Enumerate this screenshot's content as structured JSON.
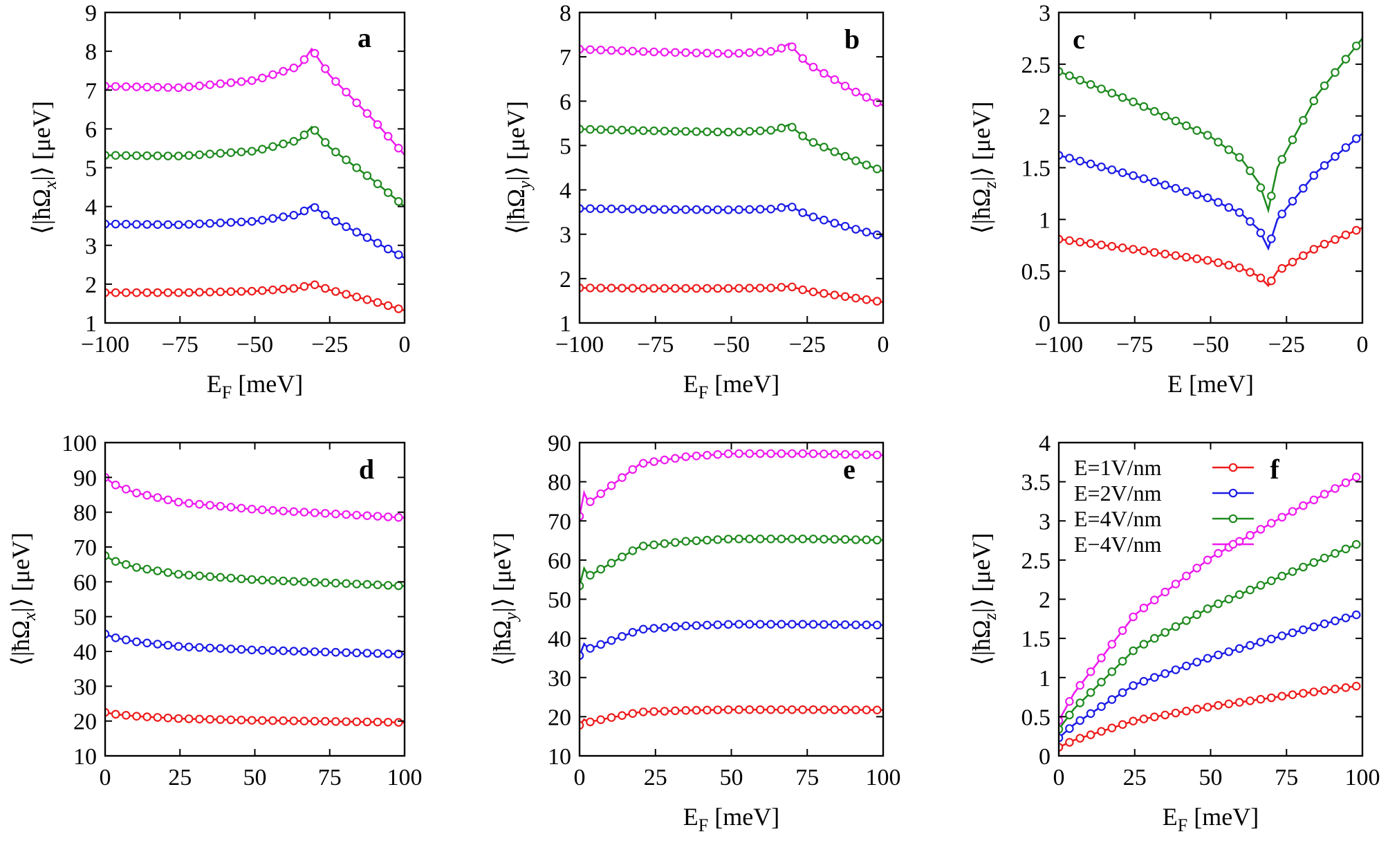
{
  "colors": {
    "red": "#ee1c1c",
    "blue": "#1c1ce6",
    "green": "#1f8a1f",
    "magenta": "#ee1cee"
  },
  "legend_labels": [
    "E=1V/nm",
    "E=2V/nm",
    "E=4V/nm",
    "E−4V/nm"
  ],
  "chart_data": [
    {
      "type": "line",
      "panel": "a",
      "ylabel": "⟨|ħΩx|⟩ [μeV]",
      "xlabel": "EF [meV]",
      "xlim": [
        -100,
        0
      ],
      "ylim": [
        1,
        9
      ],
      "xticks": [
        -100,
        -75,
        -50,
        -25,
        0
      ],
      "xtick_labels": [
        "−100",
        "−75",
        "−50",
        "−25",
        "0"
      ],
      "yticks": [
        1,
        2,
        3,
        4,
        5,
        6,
        7,
        8,
        9
      ],
      "ytick_labels": [
        "1",
        "2",
        "3",
        "4",
        "5",
        "6",
        "7",
        "8",
        "9"
      ],
      "series": [
        {
          "name": "E=1V/nm",
          "color": "red",
          "points": [
            [
              -100,
              1.78
            ],
            [
              -75,
              1.78
            ],
            [
              -50,
              1.82
            ],
            [
              -35,
              1.9
            ],
            [
              -31,
              2.01
            ],
            [
              -25,
              1.85
            ],
            [
              -10,
              1.55
            ],
            [
              0,
              1.32
            ]
          ]
        },
        {
          "name": "E=2V/nm",
          "color": "blue",
          "points": [
            [
              -100,
              3.55
            ],
            [
              -75,
              3.53
            ],
            [
              -50,
              3.62
            ],
            [
              -35,
              3.8
            ],
            [
              -31,
              4.03
            ],
            [
              -25,
              3.7
            ],
            [
              -10,
              3.1
            ],
            [
              0,
              2.67
            ]
          ]
        },
        {
          "name": "E=4V/nm",
          "color": "green",
          "points": [
            [
              -100,
              5.32
            ],
            [
              -75,
              5.3
            ],
            [
              -50,
              5.43
            ],
            [
              -35,
              5.72
            ],
            [
              -31,
              6.05
            ],
            [
              -25,
              5.52
            ],
            [
              -10,
              4.65
            ],
            [
              0,
              4.0
            ]
          ]
        },
        {
          "name": "E−4V/nm",
          "color": "magenta",
          "points": [
            [
              -100,
              7.1
            ],
            [
              -75,
              7.06
            ],
            [
              -50,
              7.25
            ],
            [
              -35,
              7.62
            ],
            [
              -31,
              8.06
            ],
            [
              -25,
              7.38
            ],
            [
              -10,
              6.2
            ],
            [
              0,
              5.33
            ]
          ]
        }
      ]
    },
    {
      "type": "line",
      "panel": "b",
      "ylabel": "⟨|ħΩy|⟩ [μeV]",
      "xlabel": "EF [meV]",
      "xlim": [
        -100,
        0
      ],
      "ylim": [
        1,
        8
      ],
      "xticks": [
        -100,
        -75,
        -50,
        -25,
        0
      ],
      "xtick_labels": [
        "−100",
        "−75",
        "−50",
        "−25",
        "0"
      ],
      "yticks": [
        1,
        2,
        3,
        4,
        5,
        6,
        7,
        8
      ],
      "ytick_labels": [
        "1",
        "2",
        "3",
        "4",
        "5",
        "6",
        "7",
        "8"
      ],
      "series": [
        {
          "name": "E=1V/nm",
          "color": "red",
          "points": [
            [
              -100,
              1.79
            ],
            [
              -75,
              1.78
            ],
            [
              -50,
              1.78
            ],
            [
              -35,
              1.79
            ],
            [
              -31,
              1.83
            ],
            [
              -25,
              1.72
            ],
            [
              -10,
              1.57
            ],
            [
              0,
              1.47
            ]
          ]
        },
        {
          "name": "E=2V/nm",
          "color": "blue",
          "points": [
            [
              -100,
              3.58
            ],
            [
              -75,
              3.56
            ],
            [
              -50,
              3.55
            ],
            [
              -35,
              3.57
            ],
            [
              -31,
              3.65
            ],
            [
              -25,
              3.43
            ],
            [
              -10,
              3.13
            ],
            [
              0,
              2.95
            ]
          ]
        },
        {
          "name": "E=4V/nm",
          "color": "green",
          "points": [
            [
              -100,
              5.37
            ],
            [
              -75,
              5.33
            ],
            [
              -50,
              5.3
            ],
            [
              -35,
              5.35
            ],
            [
              -31,
              5.47
            ],
            [
              -25,
              5.13
            ],
            [
              -10,
              4.68
            ],
            [
              0,
              4.42
            ]
          ]
        },
        {
          "name": "E−4V/nm",
          "color": "magenta",
          "points": [
            [
              -100,
              7.17
            ],
            [
              -75,
              7.11
            ],
            [
              -50,
              7.07
            ],
            [
              -35,
              7.13
            ],
            [
              -31,
              7.3
            ],
            [
              -25,
              6.85
            ],
            [
              -10,
              6.24
            ],
            [
              0,
              5.9
            ]
          ]
        }
      ]
    },
    {
      "type": "line",
      "panel": "c",
      "ylabel": "⟨|ħΩz|⟩ [μeV]",
      "xlabel": "E   [meV]",
      "xlim": [
        -100,
        0
      ],
      "ylim": [
        0,
        3
      ],
      "xticks": [
        -100,
        -75,
        -50,
        -25,
        0
      ],
      "xtick_labels": [
        "−100",
        "−75",
        "−50",
        "−25",
        "0"
      ],
      "yticks": [
        0,
        0.5,
        1,
        1.5,
        2,
        2.5,
        3
      ],
      "ytick_labels": [
        "0",
        "0.5",
        "1",
        "1.5",
        "2",
        "2.5",
        "3"
      ],
      "series": [
        {
          "name": "E=1V/nm",
          "color": "red",
          "points": [
            [
              -100,
              0.81
            ],
            [
              -75,
              0.71
            ],
            [
              -50,
              0.6
            ],
            [
              -40,
              0.53
            ],
            [
              -34,
              0.45
            ],
            [
              -31,
              0.36
            ],
            [
              -28,
              0.5
            ],
            [
              -15,
              0.73
            ],
            [
              0,
              0.92
            ]
          ]
        },
        {
          "name": "E=2V/nm",
          "color": "blue",
          "points": [
            [
              -100,
              1.62
            ],
            [
              -75,
              1.42
            ],
            [
              -50,
              1.2
            ],
            [
              -40,
              1.06
            ],
            [
              -34,
              0.9
            ],
            [
              -31,
              0.72
            ],
            [
              -28,
              1.0
            ],
            [
              -15,
              1.46
            ],
            [
              0,
              1.83
            ]
          ]
        },
        {
          "name": "E=4V/nm",
          "color": "green",
          "points": [
            [
              -100,
              2.43
            ],
            [
              -75,
              2.13
            ],
            [
              -50,
              1.8
            ],
            [
              -40,
              1.59
            ],
            [
              -34,
              1.35
            ],
            [
              -31,
              1.09
            ],
            [
              -28,
              1.5
            ],
            [
              -15,
              2.2
            ],
            [
              0,
              2.75
            ]
          ]
        }
      ]
    },
    {
      "type": "line",
      "panel": "d",
      "ylabel": "⟨|ħΩx|⟩ [μeV]",
      "xlabel": "",
      "xlim": [
        0,
        100
      ],
      "ylim": [
        10,
        100
      ],
      "xticks": [
        0,
        25,
        50,
        75,
        100
      ],
      "xtick_labels": [
        "0",
        "25",
        "50",
        "75",
        "100"
      ],
      "yticks": [
        10,
        20,
        30,
        40,
        50,
        60,
        70,
        80,
        90,
        100
      ],
      "ytick_labels": [
        "10",
        "20",
        "30",
        "40",
        "50",
        "60",
        "70",
        "80",
        "90",
        "100"
      ],
      "series": [
        {
          "name": "E=1V/nm",
          "color": "red",
          "points": [
            [
              0,
              22.5
            ],
            [
              3,
              22.0
            ],
            [
              10,
              21.4
            ],
            [
              25,
              20.7
            ],
            [
              50,
              20.2
            ],
            [
              75,
              19.9
            ],
            [
              100,
              19.6
            ]
          ]
        },
        {
          "name": "E=2V/nm",
          "color": "blue",
          "points": [
            [
              0,
              45.0
            ],
            [
              3,
              44.0
            ],
            [
              10,
              42.8
            ],
            [
              25,
              41.4
            ],
            [
              50,
              40.4
            ],
            [
              75,
              39.8
            ],
            [
              100,
              39.2
            ]
          ]
        },
        {
          "name": "E=4V/nm",
          "color": "green",
          "points": [
            [
              0,
              67.5
            ],
            [
              3,
              66.0
            ],
            [
              10,
              64.2
            ],
            [
              25,
              62.1
            ],
            [
              50,
              60.6
            ],
            [
              75,
              59.7
            ],
            [
              100,
              58.8
            ]
          ]
        },
        {
          "name": "E−4V/nm",
          "color": "magenta",
          "points": [
            [
              0,
              90.0
            ],
            [
              3,
              88.0
            ],
            [
              10,
              85.6
            ],
            [
              25,
              82.8
            ],
            [
              50,
              80.8
            ],
            [
              75,
              79.6
            ],
            [
              100,
              78.4
            ]
          ]
        }
      ]
    },
    {
      "type": "line",
      "panel": "e",
      "ylabel": "⟨|ħΩy|⟩ [μeV]",
      "xlabel": "EF [meV]",
      "xlim": [
        0,
        100
      ],
      "ylim": [
        10,
        90
      ],
      "xticks": [
        0,
        25,
        50,
        75,
        100
      ],
      "xtick_labels": [
        "0",
        "25",
        "50",
        "75",
        "100"
      ],
      "yticks": [
        10,
        20,
        30,
        40,
        50,
        60,
        70,
        80,
        90
      ],
      "ytick_labels": [
        "10",
        "20",
        "30",
        "40",
        "50",
        "60",
        "70",
        "80",
        "90"
      ],
      "series": [
        {
          "name": "E=1V/nm",
          "color": "red",
          "points": [
            [
              0,
              17.8
            ],
            [
              1.5,
              19.3
            ],
            [
              3,
              18.6
            ],
            [
              10,
              19.7
            ],
            [
              20,
              21.2
            ],
            [
              35,
              21.6
            ],
            [
              50,
              21.8
            ],
            [
              75,
              21.8
            ],
            [
              100,
              21.7
            ]
          ]
        },
        {
          "name": "E=2V/nm",
          "color": "blue",
          "points": [
            [
              0,
              35.6
            ],
            [
              1.5,
              38.6
            ],
            [
              3,
              37.3
            ],
            [
              10,
              39.3
            ],
            [
              20,
              42.3
            ],
            [
              35,
              43.2
            ],
            [
              50,
              43.6
            ],
            [
              75,
              43.6
            ],
            [
              100,
              43.4
            ]
          ]
        },
        {
          "name": "E=4V/nm",
          "color": "green",
          "points": [
            [
              0,
              53.4
            ],
            [
              1.5,
              57.9
            ],
            [
              3,
              55.9
            ],
            [
              10,
              59.0
            ],
            [
              20,
              63.5
            ],
            [
              35,
              64.8
            ],
            [
              50,
              65.4
            ],
            [
              75,
              65.4
            ],
            [
              100,
              65.1
            ]
          ]
        },
        {
          "name": "E−4V/nm",
          "color": "magenta",
          "points": [
            [
              0,
              71.2
            ],
            [
              1.5,
              77.2
            ],
            [
              3,
              74.6
            ],
            [
              10,
              78.7
            ],
            [
              20,
              84.6
            ],
            [
              35,
              86.4
            ],
            [
              50,
              87.2
            ],
            [
              75,
              87.2
            ],
            [
              100,
              86.8
            ]
          ]
        }
      ]
    },
    {
      "type": "line",
      "panel": "f",
      "ylabel": "⟨|ħΩz|⟩ [μeV]",
      "xlabel": "EF [meV]",
      "xlim": [
        0,
        100
      ],
      "ylim": [
        0,
        4
      ],
      "xticks": [
        0,
        25,
        50,
        75,
        100
      ],
      "xtick_labels": [
        "0",
        "25",
        "50",
        "75",
        "100"
      ],
      "yticks": [
        0,
        0.5,
        1,
        1.5,
        2,
        2.5,
        3,
        3.5,
        4
      ],
      "ytick_labels": [
        "0",
        "0.5",
        "1",
        "1.5",
        "2",
        "2.5",
        "3",
        "3.5",
        "4"
      ],
      "series": [
        {
          "name": "E=1V/nm",
          "color": "red",
          "points": [
            [
              0,
              0.11
            ],
            [
              5,
              0.2
            ],
            [
              25,
              0.45
            ],
            [
              50,
              0.63
            ],
            [
              75,
              0.77
            ],
            [
              98,
              0.89
            ]
          ]
        },
        {
          "name": "E=2V/nm",
          "color": "blue",
          "points": [
            [
              0,
              0.23
            ],
            [
              5,
              0.4
            ],
            [
              25,
              0.91
            ],
            [
              50,
              1.26
            ],
            [
              75,
              1.55
            ],
            [
              98,
              1.8
            ]
          ]
        },
        {
          "name": "E=4V/nm",
          "color": "green",
          "points": [
            [
              0,
              0.34
            ],
            [
              5,
              0.6
            ],
            [
              25,
              1.36
            ],
            [
              50,
              1.9
            ],
            [
              75,
              2.32
            ],
            [
              98,
              2.7
            ]
          ]
        },
        {
          "name": "E−4V/nm",
          "color": "magenta",
          "points": [
            [
              0,
              0.45
            ],
            [
              5,
              0.8
            ],
            [
              25,
              1.8
            ],
            [
              50,
              2.53
            ],
            [
              75,
              3.08
            ],
            [
              98,
              3.56
            ]
          ]
        }
      ],
      "legend_position": "top-left"
    }
  ]
}
